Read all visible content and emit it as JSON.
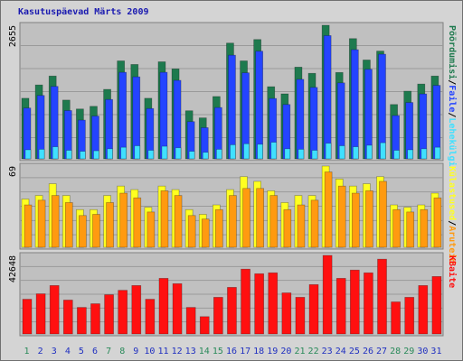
{
  "title": "Kasutuspäevad Märts 2009",
  "separator": "/",
  "chart_data": [
    {
      "type": "bar",
      "ylim": [
        0,
        2655
      ],
      "yticks": [
        2655
      ],
      "series": [
        {
          "name": "Pöördumisi",
          "color": "#1e7a4e",
          "values": [
            1204,
            1469,
            1646,
            1168,
            991,
            1044,
            1381,
            1947,
            1876,
            1204,
            1929,
            1788,
            956,
            814,
            1239,
            2301,
            1947,
            2372,
            1434,
            1292,
            1823,
            1700,
            2655,
            1717,
            2390,
            1965,
            2142,
            1080,
            1345,
            1487,
            1646
          ]
        },
        {
          "name": "Faile",
          "color": "#2444ff",
          "values": [
            1010,
            1260,
            1440,
            960,
            770,
            850,
            1180,
            1720,
            1630,
            1000,
            1720,
            1560,
            740,
            620,
            1020,
            2060,
            1710,
            2140,
            1200,
            1080,
            1580,
            1420,
            2450,
            1510,
            2170,
            1780,
            2080,
            860,
            1120,
            1290,
            1460
          ]
        },
        {
          "name": "Lehekülgi",
          "color": "#40e0ff",
          "values": [
            180,
            190,
            240,
            170,
            150,
            160,
            200,
            230,
            260,
            170,
            250,
            220,
            150,
            130,
            190,
            280,
            300,
            290,
            330,
            200,
            190,
            170,
            310,
            260,
            240,
            270,
            320,
            170,
            180,
            200,
            230
          ]
        }
      ]
    },
    {
      "type": "bar",
      "ylim": [
        0,
        69
      ],
      "yticks": [
        69
      ],
      "series": [
        {
          "name": "Külastused",
          "color": "#ffff20",
          "values": [
            41,
            44,
            54,
            44,
            32,
            32,
            44,
            52,
            49,
            34,
            52,
            49,
            32,
            28,
            36,
            49,
            60,
            56,
            48,
            38,
            44,
            44,
            69,
            58,
            52,
            54,
            60,
            36,
            34,
            36,
            46
          ]
        },
        {
          "name": "Aruteid",
          "color": "#ff9a10",
          "values": [
            36,
            40,
            44,
            38,
            27,
            28,
            38,
            46,
            42,
            30,
            48,
            44,
            27,
            24,
            32,
            44,
            50,
            50,
            44,
            32,
            36,
            40,
            64,
            52,
            46,
            48,
            56,
            32,
            30,
            32,
            42
          ]
        }
      ]
    },
    {
      "type": "bar",
      "ylim": [
        0,
        42648
      ],
      "yticks": [
        42648
      ],
      "categories": [
        "1",
        "2",
        "3",
        "4",
        "5",
        "6",
        "7",
        "8",
        "9",
        "10",
        "11",
        "12",
        "13",
        "14",
        "15",
        "16",
        "17",
        "18",
        "19",
        "20",
        "21",
        "22",
        "23",
        "24",
        "25",
        "26",
        "27",
        "28",
        "29",
        "30",
        "31"
      ],
      "label_colors": [
        "#2a8a5a",
        "#2030c0",
        "#2030c0",
        "#2030c0",
        "#2030c0",
        "#2030c0",
        "#2a8a5a",
        "#2a8a5a",
        "#2030c0",
        "#2030c0",
        "#2030c0",
        "#2030c0",
        "#2030c0",
        "#2a8a5a",
        "#2a8a5a",
        "#2030c0",
        "#2030c0",
        "#2030c0",
        "#2030c0",
        "#2030c0",
        "#2a8a5a",
        "#2a8a5a",
        "#2030c0",
        "#2030c0",
        "#2030c0",
        "#2030c0",
        "#2030c0",
        "#2a8a5a",
        "#2a8a5a",
        "#2030c0",
        "#2030c0"
      ],
      "series": [
        {
          "name": "KBaite",
          "color": "#ff1010",
          "values": [
            18850,
            21800,
            26300,
            18400,
            14400,
            16400,
            21300,
            23700,
            26300,
            18850,
            30200,
            27300,
            14400,
            9400,
            19900,
            25300,
            35200,
            32700,
            33200,
            22300,
            19900,
            26800,
            42648,
            30200,
            34700,
            33200,
            40600,
            17400,
            19900,
            26300,
            31200
          ]
        }
      ]
    }
  ]
}
